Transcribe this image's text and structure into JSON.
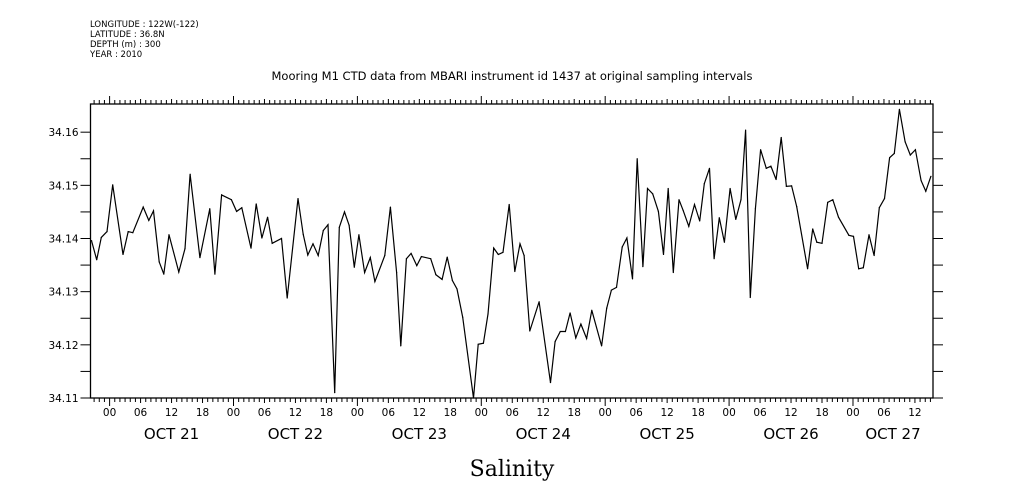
{
  "meta": {
    "longitude": "LONGITUDE : 122W(-122)",
    "latitude": "LATITUDE : 36.8N",
    "depth": "DEPTH (m) : 300",
    "year": "YEAR : 2010"
  },
  "chart_data": {
    "type": "line",
    "title": "Mooring M1 CTD data from MBARI instrument id 1437 at original sampling intervals",
    "xlabel": "",
    "ylabel": "",
    "bottom_label": "Salinity",
    "x_units": "hours since OCT 21 00:00",
    "xlim": [
      -3.7,
      159.5
    ],
    "ylim": [
      34.11,
      34.1653
    ],
    "y_ticks": [
      "34.11",
      "34.12",
      "34.13",
      "34.14",
      "34.15",
      "34.16"
    ],
    "x_hour_labels": [
      "00",
      "06",
      "12",
      "18",
      "00",
      "06",
      "12",
      "18",
      "00",
      "06",
      "12",
      "18",
      "00",
      "06",
      "12",
      "18",
      "00",
      "06",
      "12",
      "18",
      "00",
      "06",
      "12",
      "18",
      "00",
      "06",
      "12"
    ],
    "x_hour_label_positions": [
      0,
      6,
      12,
      18,
      24,
      30,
      36,
      42,
      48,
      54,
      60,
      66,
      72,
      78,
      84,
      90,
      96,
      102,
      108,
      114,
      120,
      126,
      132,
      138,
      144,
      150,
      156
    ],
    "x_day_labels": [
      "OCT 21",
      "OCT 22",
      "OCT 23",
      "OCT 24",
      "OCT 25",
      "OCT 26",
      "OCT 27"
    ],
    "grid": false,
    "series": [
      {
        "name": "Salinity",
        "color": "#000000",
        "x": [
          -3.5,
          -2.5,
          -1.6,
          -0.5,
          0.6,
          2.6,
          3.6,
          4.5,
          6.5,
          7.6,
          8.5,
          9.6,
          10.5,
          11.5,
          13.4,
          14.6,
          15.6,
          17.5,
          19.4,
          20.4,
          21.7,
          23.6,
          24.6,
          25.6,
          27.4,
          28.4,
          29.5,
          30.6,
          31.5,
          33.3,
          34.4,
          36.5,
          37.5,
          38.4,
          39.4,
          40.4,
          41.4,
          42.3,
          43.6,
          44.5,
          45.5,
          46.4,
          47.4,
          48.3,
          49.4,
          50.5,
          51.4,
          53.3,
          54.4,
          55.6,
          56.4,
          57.5,
          58.4,
          59.5,
          60.4,
          62.2,
          63.2,
          64.4,
          65.4,
          66.4,
          67.3,
          68.4,
          70.5,
          71.4,
          72.4,
          73.3,
          74.4,
          75.3,
          76.2,
          77.4,
          78.5,
          79.5,
          80.3,
          81.4,
          83.2,
          85.4,
          86.3,
          87.3,
          88.3,
          89.2,
          90.3,
          91.3,
          92.4,
          93.4,
          95.3,
          96.3,
          97.2,
          98.2,
          99.3,
          100.2,
          101.3,
          102.2,
          103.3,
          104.2,
          105.2,
          106.3,
          107.3,
          108.2,
          109.2,
          110.3,
          111.1,
          112.2,
          113.3,
          114.3,
          115.2,
          116.2,
          117.1,
          118.1,
          119.1,
          120.2,
          121.3,
          122.3,
          123.2,
          124.1,
          125.1,
          126.1,
          127.2,
          128.1,
          129.1,
          130.1,
          131.1,
          132.1,
          133.1,
          135.2,
          136.2,
          137.0,
          138.0,
          139.1,
          140.1,
          141.2,
          143.2,
          144.1,
          145.1,
          146.0,
          147.1,
          148.1,
          149.1,
          150.1,
          151.1,
          152.0,
          153.0,
          154.1,
          155.1,
          156.1,
          157.2,
          158.1,
          159.1
        ],
        "y": [
          34.1396,
          34.136,
          34.1402,
          34.1413,
          34.1501,
          34.137,
          34.1413,
          34.1411,
          34.1459,
          34.1434,
          34.1452,
          34.1356,
          34.1333,
          34.1407,
          34.1337,
          34.1381,
          34.1521,
          34.1364,
          34.1456,
          34.1333,
          34.1482,
          34.1473,
          34.1451,
          34.1458,
          34.1382,
          34.1465,
          34.1401,
          34.144,
          34.1391,
          34.14,
          34.1288,
          34.1475,
          34.1408,
          34.1369,
          34.139,
          34.1368,
          34.1415,
          34.1426,
          34.111,
          34.1421,
          34.145,
          34.1425,
          34.1346,
          34.1407,
          34.1336,
          34.1364,
          34.1319,
          34.1368,
          34.1459,
          34.1336,
          34.1198,
          34.1362,
          34.1372,
          34.1349,
          34.1366,
          34.1362,
          34.1332,
          34.1323,
          34.1365,
          34.1321,
          34.1305,
          34.1252,
          34.11,
          34.1201,
          34.1203,
          34.1258,
          34.1382,
          34.137,
          34.1374,
          34.1464,
          34.1338,
          34.139,
          34.1368,
          34.1226,
          34.1281,
          34.1129,
          34.1206,
          34.1225,
          34.1225,
          34.126,
          34.1213,
          34.1239,
          34.1212,
          34.1265,
          34.1198,
          34.1269,
          34.1303,
          34.1308,
          34.1384,
          34.1401,
          34.1324,
          34.155,
          34.1347,
          34.1494,
          34.1484,
          34.1451,
          34.137,
          34.1494,
          34.1336,
          34.1473,
          34.1453,
          34.1423,
          34.1464,
          34.1433,
          34.1503,
          34.1532,
          34.1362,
          34.1439,
          34.1393,
          34.1494,
          34.1436,
          34.1473,
          34.1604,
          34.1289,
          34.1456,
          34.1567,
          34.1532,
          34.1536,
          34.1511,
          34.159,
          34.1498,
          34.1499,
          34.146,
          34.1343,
          34.1418,
          34.1393,
          34.1391,
          34.1468,
          34.1473,
          34.144,
          34.1406,
          34.1404,
          34.1343,
          34.1345,
          34.1407,
          34.1368,
          34.1458,
          34.1475,
          34.1552,
          34.156,
          34.1643,
          34.1582,
          34.1557,
          34.1567,
          34.1509,
          34.1489,
          34.1517
        ]
      }
    ]
  }
}
